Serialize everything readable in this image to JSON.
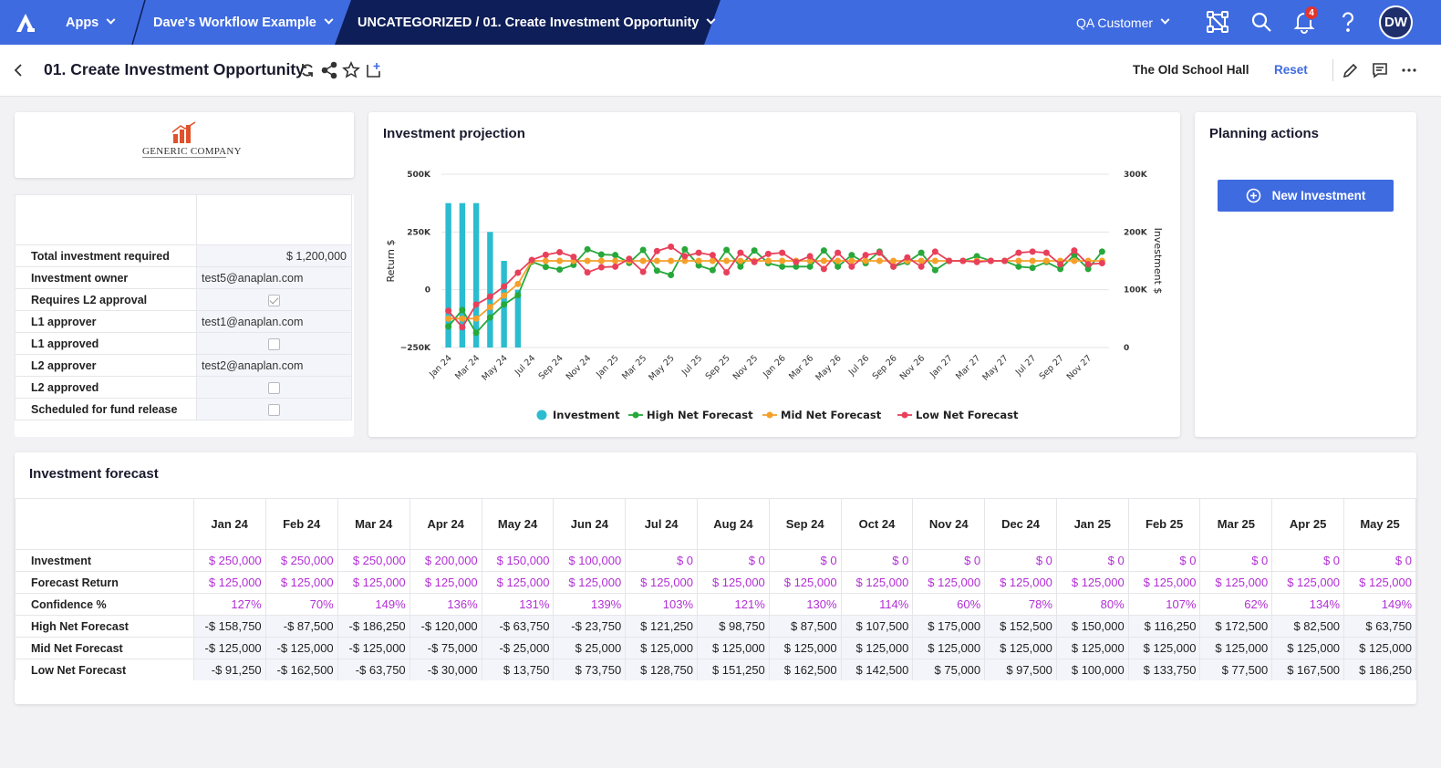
{
  "topbar": {
    "apps": "Apps",
    "workflow": "Dave's Workflow Example",
    "path": "UNCATEGORIZED / 01. Create Investment Opportunity",
    "customer": "QA Customer",
    "notification_count": "4",
    "avatar": "DW",
    "colors": {
      "bar": "#3f6be0",
      "active_segment": "#0e1e58"
    }
  },
  "subheader": {
    "title": "01. Create Investment Opportunity",
    "venue": "The Old School Hall",
    "reset": "Reset"
  },
  "company": {
    "name": "GENERIC COMPANY"
  },
  "details": {
    "rows": [
      {
        "label": "Total investment required",
        "value": "$ 1,200,000",
        "type": "number"
      },
      {
        "label": "Investment owner",
        "value": "test5@anaplan.com",
        "type": "text"
      },
      {
        "label": "Requires L2 approval",
        "checked": true,
        "type": "checkbox"
      },
      {
        "label": "L1 approver",
        "value": "test1@anaplan.com",
        "type": "text"
      },
      {
        "label": "L1 approved",
        "checked": false,
        "type": "checkbox"
      },
      {
        "label": "L2 approver",
        "value": "test2@anaplan.com",
        "type": "text"
      },
      {
        "label": "L2 approved",
        "checked": false,
        "type": "checkbox"
      },
      {
        "label": "Scheduled for fund release",
        "checked": false,
        "type": "checkbox"
      }
    ]
  },
  "chart_title": "Investment projection",
  "chart_data": {
    "type": "bar+line",
    "ylabel": "Return $",
    "y2label": "Investment $",
    "ylim": [
      -250000,
      500000
    ],
    "y2lim": [
      0,
      300000
    ],
    "yticks": [
      "−250K",
      "0",
      "250K",
      "500K"
    ],
    "y2ticks": [
      "0",
      "100K",
      "200K",
      "300K"
    ],
    "xtick_labels": [
      "Jan 24",
      "Mar 24",
      "May 24",
      "Jul 24",
      "Sep 24",
      "Nov 24",
      "Jan 25",
      "Mar 25",
      "May 25",
      "Jul 25",
      "Sep 25",
      "Nov 25",
      "Jan 26",
      "Mar 26",
      "May 26",
      "Jul 26",
      "Sep 26",
      "Nov 26",
      "Jan 27",
      "Mar 27",
      "May 27",
      "Jul 27",
      "Sep 27",
      "Nov 27"
    ],
    "periods": 48,
    "legend": [
      {
        "name": "Investment",
        "color": "#2bbcd0"
      },
      {
        "name": "High Net Forecast",
        "color": "#27a83a"
      },
      {
        "name": "Mid Net Forecast",
        "color": "#f5a02a"
      },
      {
        "name": "Low Net Forecast",
        "color": "#e8405a"
      }
    ],
    "series": [
      {
        "name": "Investment",
        "axis": "y2",
        "values": [
          250000,
          250000,
          250000,
          200000,
          150000,
          100000,
          0,
          0,
          0,
          0,
          0,
          0,
          0,
          0,
          0,
          0,
          0,
          0,
          0,
          0,
          0,
          0,
          0,
          0,
          0,
          0,
          0,
          0,
          0,
          0,
          0,
          0,
          0,
          0,
          0,
          0,
          0,
          0,
          0,
          0,
          0,
          0,
          0,
          0,
          0,
          0,
          0,
          0
        ]
      },
      {
        "name": "High Net Forecast",
        "axis": "y",
        "values": [
          -158750,
          -87500,
          -186250,
          -120000,
          -63750,
          -23750,
          121250,
          98750,
          87500,
          107500,
          175000,
          152500,
          150000,
          116250,
          172500,
          82500,
          63750,
          175000,
          105000,
          85000,
          172500,
          100000,
          170000,
          115000,
          100000,
          100000,
          100000,
          170000,
          100000,
          150000,
          115000,
          165000,
          100000,
          120000,
          160000,
          85000,
          125000,
          125000,
          145000,
          125000,
          125000,
          100000,
          95000,
          120000,
          90000,
          150000,
          90000,
          165000
        ]
      },
      {
        "name": "Mid Net Forecast",
        "axis": "y",
        "values": [
          -125000,
          -125000,
          -125000,
          -75000,
          -25000,
          25000,
          125000,
          125000,
          125000,
          125000,
          125000,
          125000,
          125000,
          125000,
          125000,
          125000,
          125000,
          125000,
          125000,
          125000,
          125000,
          125000,
          125000,
          125000,
          125000,
          125000,
          125000,
          125000,
          125000,
          125000,
          125000,
          125000,
          125000,
          125000,
          125000,
          125000,
          125000,
          125000,
          125000,
          125000,
          125000,
          125000,
          125000,
          125000,
          125000,
          125000,
          125000,
          125000
        ]
      },
      {
        "name": "Low Net Forecast",
        "axis": "y",
        "values": [
          -91250,
          -162500,
          -63750,
          -30000,
          13750,
          73750,
          128750,
          151250,
          162500,
          142500,
          75000,
          97500,
          100000,
          133750,
          77500,
          167500,
          186250,
          145000,
          160000,
          150000,
          75000,
          160000,
          120000,
          155000,
          160000,
          120000,
          145000,
          90000,
          160000,
          100000,
          150000,
          160000,
          100000,
          140000,
          100000,
          165000,
          125000,
          125000,
          120000,
          125000,
          125000,
          160000,
          165000,
          160000,
          110000,
          170000,
          110000,
          115000
        ]
      }
    ]
  },
  "actions": {
    "title": "Planning actions",
    "new_investment": "New Investment"
  },
  "forecast": {
    "title": "Investment forecast",
    "columns": [
      "Jan 24",
      "Feb 24",
      "Mar 24",
      "Apr 24",
      "May 24",
      "Jun 24",
      "Jul 24",
      "Aug 24",
      "Sep 24",
      "Oct 24",
      "Nov 24",
      "Dec 24",
      "Jan 25",
      "Feb 25",
      "Mar 25",
      "Apr 25",
      "May 25"
    ],
    "rows": [
      {
        "label": "Investment",
        "kind": "input",
        "cells": [
          "$ 250,000",
          "$ 250,000",
          "$ 250,000",
          "$ 200,000",
          "$ 150,000",
          "$ 100,000",
          "$ 0",
          "$ 0",
          "$ 0",
          "$ 0",
          "$ 0",
          "$ 0",
          "$ 0",
          "$ 0",
          "$ 0",
          "$ 0",
          "$ 0"
        ]
      },
      {
        "label": "Forecast Return",
        "kind": "input",
        "cells": [
          "$ 125,000",
          "$ 125,000",
          "$ 125,000",
          "$ 125,000",
          "$ 125,000",
          "$ 125,000",
          "$ 125,000",
          "$ 125,000",
          "$ 125,000",
          "$ 125,000",
          "$ 125,000",
          "$ 125,000",
          "$ 125,000",
          "$ 125,000",
          "$ 125,000",
          "$ 125,000",
          "$ 125,000"
        ]
      },
      {
        "label": "Confidence %",
        "kind": "input",
        "cells": [
          "127%",
          "70%",
          "149%",
          "136%",
          "131%",
          "139%",
          "103%",
          "121%",
          "130%",
          "114%",
          "60%",
          "78%",
          "80%",
          "107%",
          "62%",
          "134%",
          "149%"
        ]
      },
      {
        "label": "High Net Forecast",
        "kind": "calc",
        "cells": [
          "-$ 158,750",
          "-$ 87,500",
          "-$ 186,250",
          "-$ 120,000",
          "-$ 63,750",
          "-$ 23,750",
          "$ 121,250",
          "$ 98,750",
          "$ 87,500",
          "$ 107,500",
          "$ 175,000",
          "$ 152,500",
          "$ 150,000",
          "$ 116,250",
          "$ 172,500",
          "$ 82,500",
          "$ 63,750"
        ]
      },
      {
        "label": "Mid Net Forecast",
        "kind": "calc",
        "cells": [
          "-$ 125,000",
          "-$ 125,000",
          "-$ 125,000",
          "-$ 75,000",
          "-$ 25,000",
          "$ 25,000",
          "$ 125,000",
          "$ 125,000",
          "$ 125,000",
          "$ 125,000",
          "$ 125,000",
          "$ 125,000",
          "$ 125,000",
          "$ 125,000",
          "$ 125,000",
          "$ 125,000",
          "$ 125,000"
        ]
      },
      {
        "label": "Low Net Forecast",
        "kind": "calc",
        "cells": [
          "-$ 91,250",
          "-$ 162,500",
          "-$ 63,750",
          "-$ 30,000",
          "$ 13,750",
          "$ 73,750",
          "$ 128,750",
          "$ 151,250",
          "$ 162,500",
          "$ 142,500",
          "$ 75,000",
          "$ 97,500",
          "$ 100,000",
          "$ 133,750",
          "$ 77,500",
          "$ 167,500",
          "$ 186,250"
        ]
      }
    ]
  }
}
